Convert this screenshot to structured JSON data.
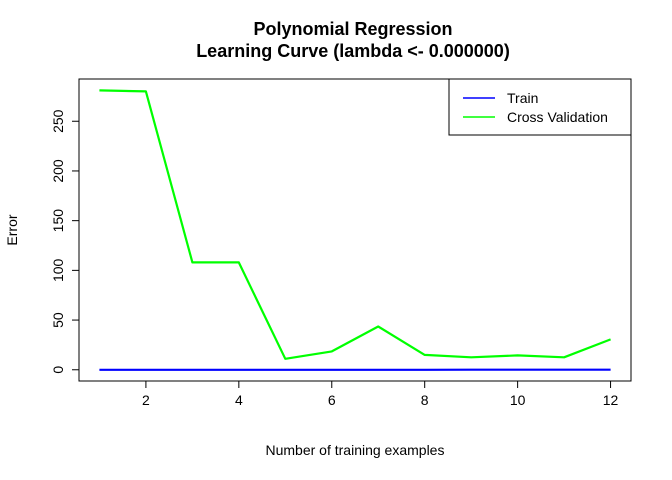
{
  "chart_data": {
    "type": "line",
    "title_lines": [
      "Polynomial Regression",
      "Learning Curve (lambda <- 0.000000)"
    ],
    "xlabel": "Number of training examples",
    "ylabel": "Error",
    "x": [
      1,
      2,
      3,
      4,
      5,
      6,
      7,
      8,
      9,
      10,
      11,
      12
    ],
    "xlim": [
      0.56,
      12.44
    ],
    "ylim": [
      -11.3,
      292.5
    ],
    "x_ticks": [
      2,
      4,
      6,
      8,
      10,
      12
    ],
    "y_ticks": [
      0,
      50,
      100,
      150,
      200,
      250
    ],
    "grid": false,
    "legend_position": "top-right",
    "series": [
      {
        "name": "Train",
        "color": "#0000ff",
        "values": [
          0.0,
          0.0,
          0.0,
          0.0,
          0.0,
          0.0,
          0.0,
          0.0,
          0.1,
          0.1,
          0.1,
          0.1
        ]
      },
      {
        "name": "Cross Validation",
        "color": "#00ff00",
        "values": [
          281,
          280,
          108,
          108,
          11,
          18.5,
          43.5,
          15,
          12.5,
          14.5,
          12.5,
          30.5
        ]
      }
    ]
  }
}
